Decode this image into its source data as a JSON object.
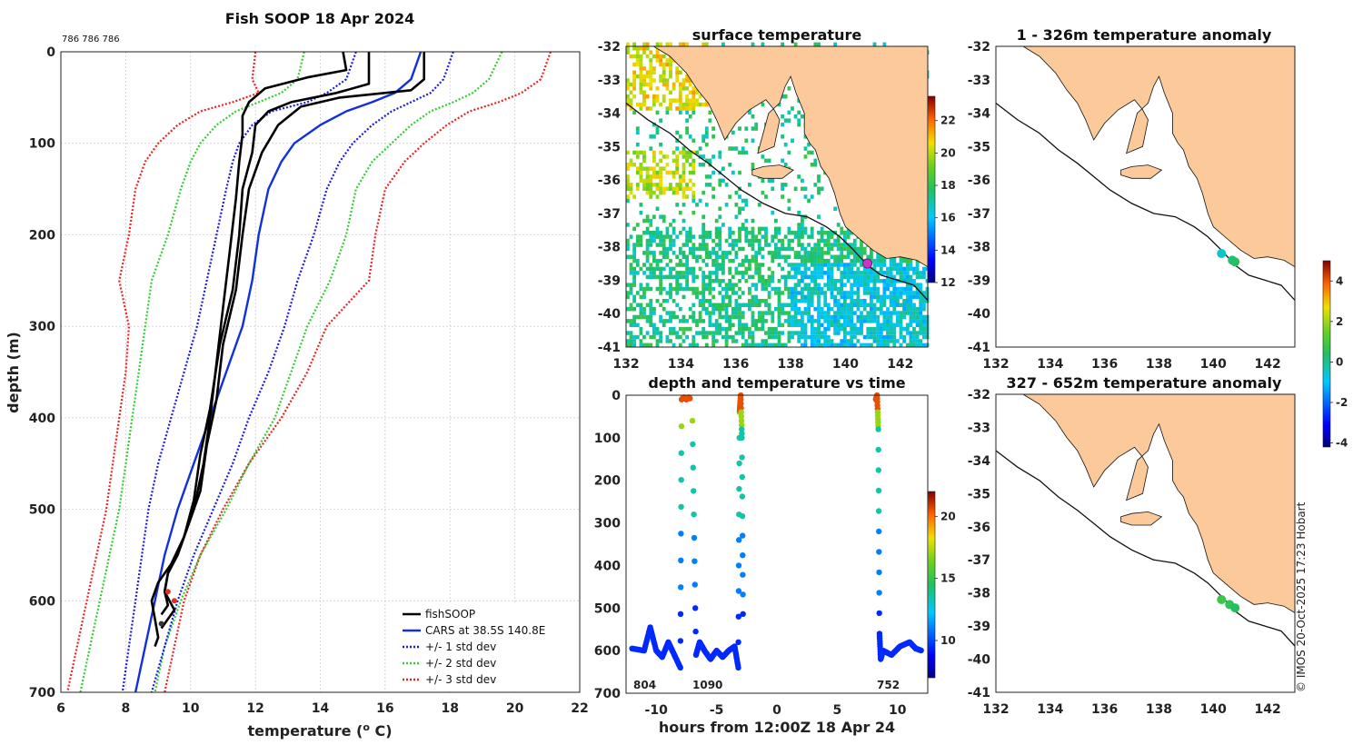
{
  "credit": "© IMOS 20-Oct-2025 17:23 Hobart",
  "colors": {
    "land": "#fbc99a",
    "fishsoop": "#000000",
    "cars": "#1030e0",
    "std1": "#1a1ae6",
    "std2": "#33cc33",
    "std3": "#ee2222"
  },
  "chart_data": [
    {
      "id": "profile",
      "type": "line",
      "title": "Fish SOOP 18 Apr 2024",
      "annotation": "786 786 786",
      "xlabel": "temperature (",
      "xlabel_sup": "o",
      "xlabel_end": " C)",
      "ylabel": "depth (m)",
      "xlim": [
        6,
        22
      ],
      "ylim": [
        700,
        0
      ],
      "xticks": [
        "6",
        "8",
        "10",
        "12",
        "14",
        "16",
        "18",
        "20",
        "22"
      ],
      "yticks": [
        "0",
        "100",
        "200",
        "300",
        "400",
        "500",
        "600",
        "700"
      ],
      "legend": [
        "fishSOOP",
        "CARS at 38.5S 140.8E",
        "+/- 1 std dev",
        "+/- 2 std dev",
        "+/- 3 std dev"
      ],
      "depths": [
        0,
        30,
        45,
        55,
        65,
        80,
        100,
        120,
        150,
        200,
        250,
        300,
        350,
        400,
        450,
        500,
        550,
        600,
        650,
        700
      ],
      "cars": [
        17.1,
        16.8,
        16.3,
        15.6,
        14.8,
        14.0,
        13.2,
        12.8,
        12.4,
        12.1,
        11.9,
        11.6,
        11.1,
        10.6,
        10.1,
        9.6,
        9.2,
        8.9,
        8.6,
        8.3
      ],
      "std1_low": [
        15.1,
        14.8,
        14.2,
        13.6,
        12.5,
        11.9,
        11.5,
        11.3,
        11.1,
        10.8,
        10.5,
        10.2,
        9.8,
        9.4,
        9.0,
        8.7,
        8.5,
        8.3,
        8.1,
        7.9
      ],
      "std1_high": [
        18.1,
        17.8,
        17.4,
        16.8,
        16.2,
        15.6,
        15.0,
        14.6,
        14.2,
        13.8,
        13.3,
        12.9,
        12.4,
        11.8,
        11.3,
        10.7,
        10.1,
        9.6,
        9.2,
        8.8
      ],
      "std2_low": [
        13.5,
        13.3,
        12.8,
        12.1,
        11.4,
        10.8,
        10.3,
        10.0,
        9.7,
        9.3,
        8.8,
        8.6,
        8.4,
        8.2,
        8.0,
        7.8,
        7.5,
        7.2,
        6.9,
        6.6
      ],
      "std2_high": [
        19.6,
        19.2,
        18.7,
        18.1,
        17.4,
        16.8,
        16.2,
        15.6,
        15.1,
        14.8,
        14.3,
        13.6,
        13.1,
        12.6,
        11.8,
        11.1,
        10.3,
        9.7,
        9.2,
        8.9
      ],
      "std3_low": [
        12.0,
        11.9,
        12.1,
        11.3,
        10.3,
        9.6,
        9.0,
        8.6,
        8.3,
        8.1,
        7.8,
        8.1,
        8.0,
        7.8,
        7.6,
        7.4,
        7.1,
        6.8,
        6.5,
        6.2
      ],
      "std3_high": [
        21.1,
        20.8,
        20.2,
        19.5,
        18.6,
        17.9,
        17.2,
        16.6,
        16.0,
        15.7,
        15.5,
        14.2,
        13.6,
        12.8,
        11.8,
        11.0,
        10.3,
        9.8,
        9.5,
        9.2
      ],
      "casts": [
        {
          "depth": [
            0,
            30,
            42,
            50,
            60,
            80,
            110,
            150,
            200,
            260,
            320,
            380,
            430,
            480,
            520,
            550,
            570,
            590,
            605,
            615
          ],
          "temp": [
            17.2,
            17.2,
            16.8,
            14.6,
            13.4,
            12.7,
            12.2,
            11.8,
            11.6,
            11.4,
            11.0,
            10.8,
            10.5,
            10.3,
            9.9,
            9.6,
            9.3,
            9.2,
            9.3,
            9.1
          ]
        },
        {
          "depth": [
            0,
            35,
            45,
            55,
            65,
            80,
            110,
            150,
            200,
            260,
            320,
            390,
            440,
            490,
            530,
            560,
            580,
            600,
            620,
            640,
            650
          ],
          "temp": [
            15.5,
            15.5,
            14.5,
            13.1,
            12.4,
            12.0,
            11.9,
            11.6,
            11.5,
            11.3,
            10.9,
            10.6,
            10.3,
            10.1,
            9.8,
            9.4,
            9.0,
            8.8,
            8.9,
            9.0,
            8.9
          ]
        },
        {
          "depth": [
            0,
            20,
            28,
            40,
            55,
            70,
            90,
            120,
            160,
            220,
            280,
            340,
            400,
            450,
            500,
            540,
            570,
            590,
            610,
            630
          ],
          "temp": [
            14.7,
            14.8,
            13.6,
            12.3,
            11.8,
            11.6,
            11.6,
            11.5,
            11.4,
            11.2,
            11.0,
            10.8,
            10.6,
            10.4,
            10.1,
            9.7,
            9.3,
            9.2,
            9.5,
            9.1
          ]
        }
      ]
    },
    {
      "id": "surface",
      "type": "heatmap",
      "title": "surface temperature",
      "xlim": [
        132,
        143
      ],
      "ylim": [
        -41,
        -32
      ],
      "xticks": [
        "132",
        "134",
        "136",
        "138",
        "140",
        "142"
      ],
      "yticks": [
        "-32",
        "-33",
        "-34",
        "-35",
        "-36",
        "-37",
        "-38",
        "-39",
        "-40",
        "-41"
      ],
      "colorbar": {
        "range": [
          12,
          23.5
        ],
        "ticks": [
          "12",
          "14",
          "16",
          "18",
          "20",
          "22"
        ]
      },
      "points": [
        {
          "lon": 140.8,
          "lat": -38.5,
          "color": "#cc33cc"
        }
      ]
    },
    {
      "id": "timeseries",
      "type": "scatter",
      "title": "depth and temperature vs time",
      "xlabel": "hours from 12:00Z 18 Apr 24",
      "xlim": [
        -12.5,
        12.5
      ],
      "ylim": [
        700,
        0
      ],
      "xticks": [
        "-10",
        "-5",
        "0",
        "5",
        "10"
      ],
      "yticks": [
        "0",
        "100",
        "200",
        "300",
        "400",
        "500",
        "600",
        "700"
      ],
      "colorbar": {
        "range": [
          7,
          22
        ],
        "ticks": [
          "10",
          "15",
          "20"
        ]
      },
      "annotations": [
        "804",
        "1090",
        "752"
      ],
      "time": [
        -12.0,
        -11.0,
        -10.5,
        -10.0,
        -9.5,
        -9.0,
        -8.5,
        -8.0,
        -7.9,
        -7.7,
        -7.5,
        -7.3,
        -7.2,
        -7.0,
        -6.7,
        -6.4,
        -6.0,
        -5.5,
        -5.0,
        -4.5,
        -4.0,
        -3.5,
        -3.2,
        -3.1,
        -3.0,
        -2.9,
        -2.8,
        8.2,
        8.3,
        8.4,
        8.5,
        8.6,
        8.8,
        9.5,
        10.2,
        11.0,
        11.5,
        12.0
      ],
      "depth": [
        595,
        600,
        545,
        600,
        615,
        580,
        610,
        640,
        10,
        5,
        10,
        5,
        8,
        60,
        610,
        580,
        600,
        620,
        600,
        615,
        600,
        590,
        640,
        40,
        0,
        100,
        560,
        10,
        0,
        80,
        560,
        620,
        600,
        610,
        590,
        580,
        595,
        600
      ]
    },
    {
      "id": "anomaly_shallow",
      "type": "scatter",
      "title": "1 - 326m temperature anomaly",
      "xlim": [
        132,
        143
      ],
      "ylim": [
        -41,
        -32
      ],
      "xticks": [
        "132",
        "134",
        "136",
        "138",
        "140",
        "142"
      ],
      "yticks": [
        "-32",
        "-33",
        "-34",
        "-35",
        "-36",
        "-37",
        "-38",
        "-39",
        "-40",
        "-41"
      ],
      "points": [
        {
          "lon": 140.3,
          "lat": -38.2,
          "anomaly": -0.5
        },
        {
          "lon": 140.7,
          "lat": -38.4,
          "anomaly": 0.2
        },
        {
          "lon": 140.8,
          "lat": -38.45,
          "anomaly": 0.4
        }
      ]
    },
    {
      "id": "anomaly_deep",
      "type": "scatter",
      "title": "327 - 652m temperature anomaly",
      "xlim": [
        132,
        143
      ],
      "ylim": [
        -41,
        -32
      ],
      "xticks": [
        "132",
        "134",
        "136",
        "138",
        "140",
        "142"
      ],
      "yticks": [
        "-32",
        "-33",
        "-34",
        "-35",
        "-36",
        "-37",
        "-38",
        "-39",
        "-40",
        "-41"
      ],
      "points": [
        {
          "lon": 140.3,
          "lat": -38.2,
          "anomaly": 0.8
        },
        {
          "lon": 140.6,
          "lat": -38.35,
          "anomaly": 0.6
        },
        {
          "lon": 140.8,
          "lat": -38.45,
          "anomaly": 0.4
        }
      ],
      "colorbar": {
        "range": [
          -4.2,
          5.0
        ],
        "ticks": [
          "-4",
          "-2",
          "0",
          "2",
          "4"
        ]
      }
    }
  ]
}
